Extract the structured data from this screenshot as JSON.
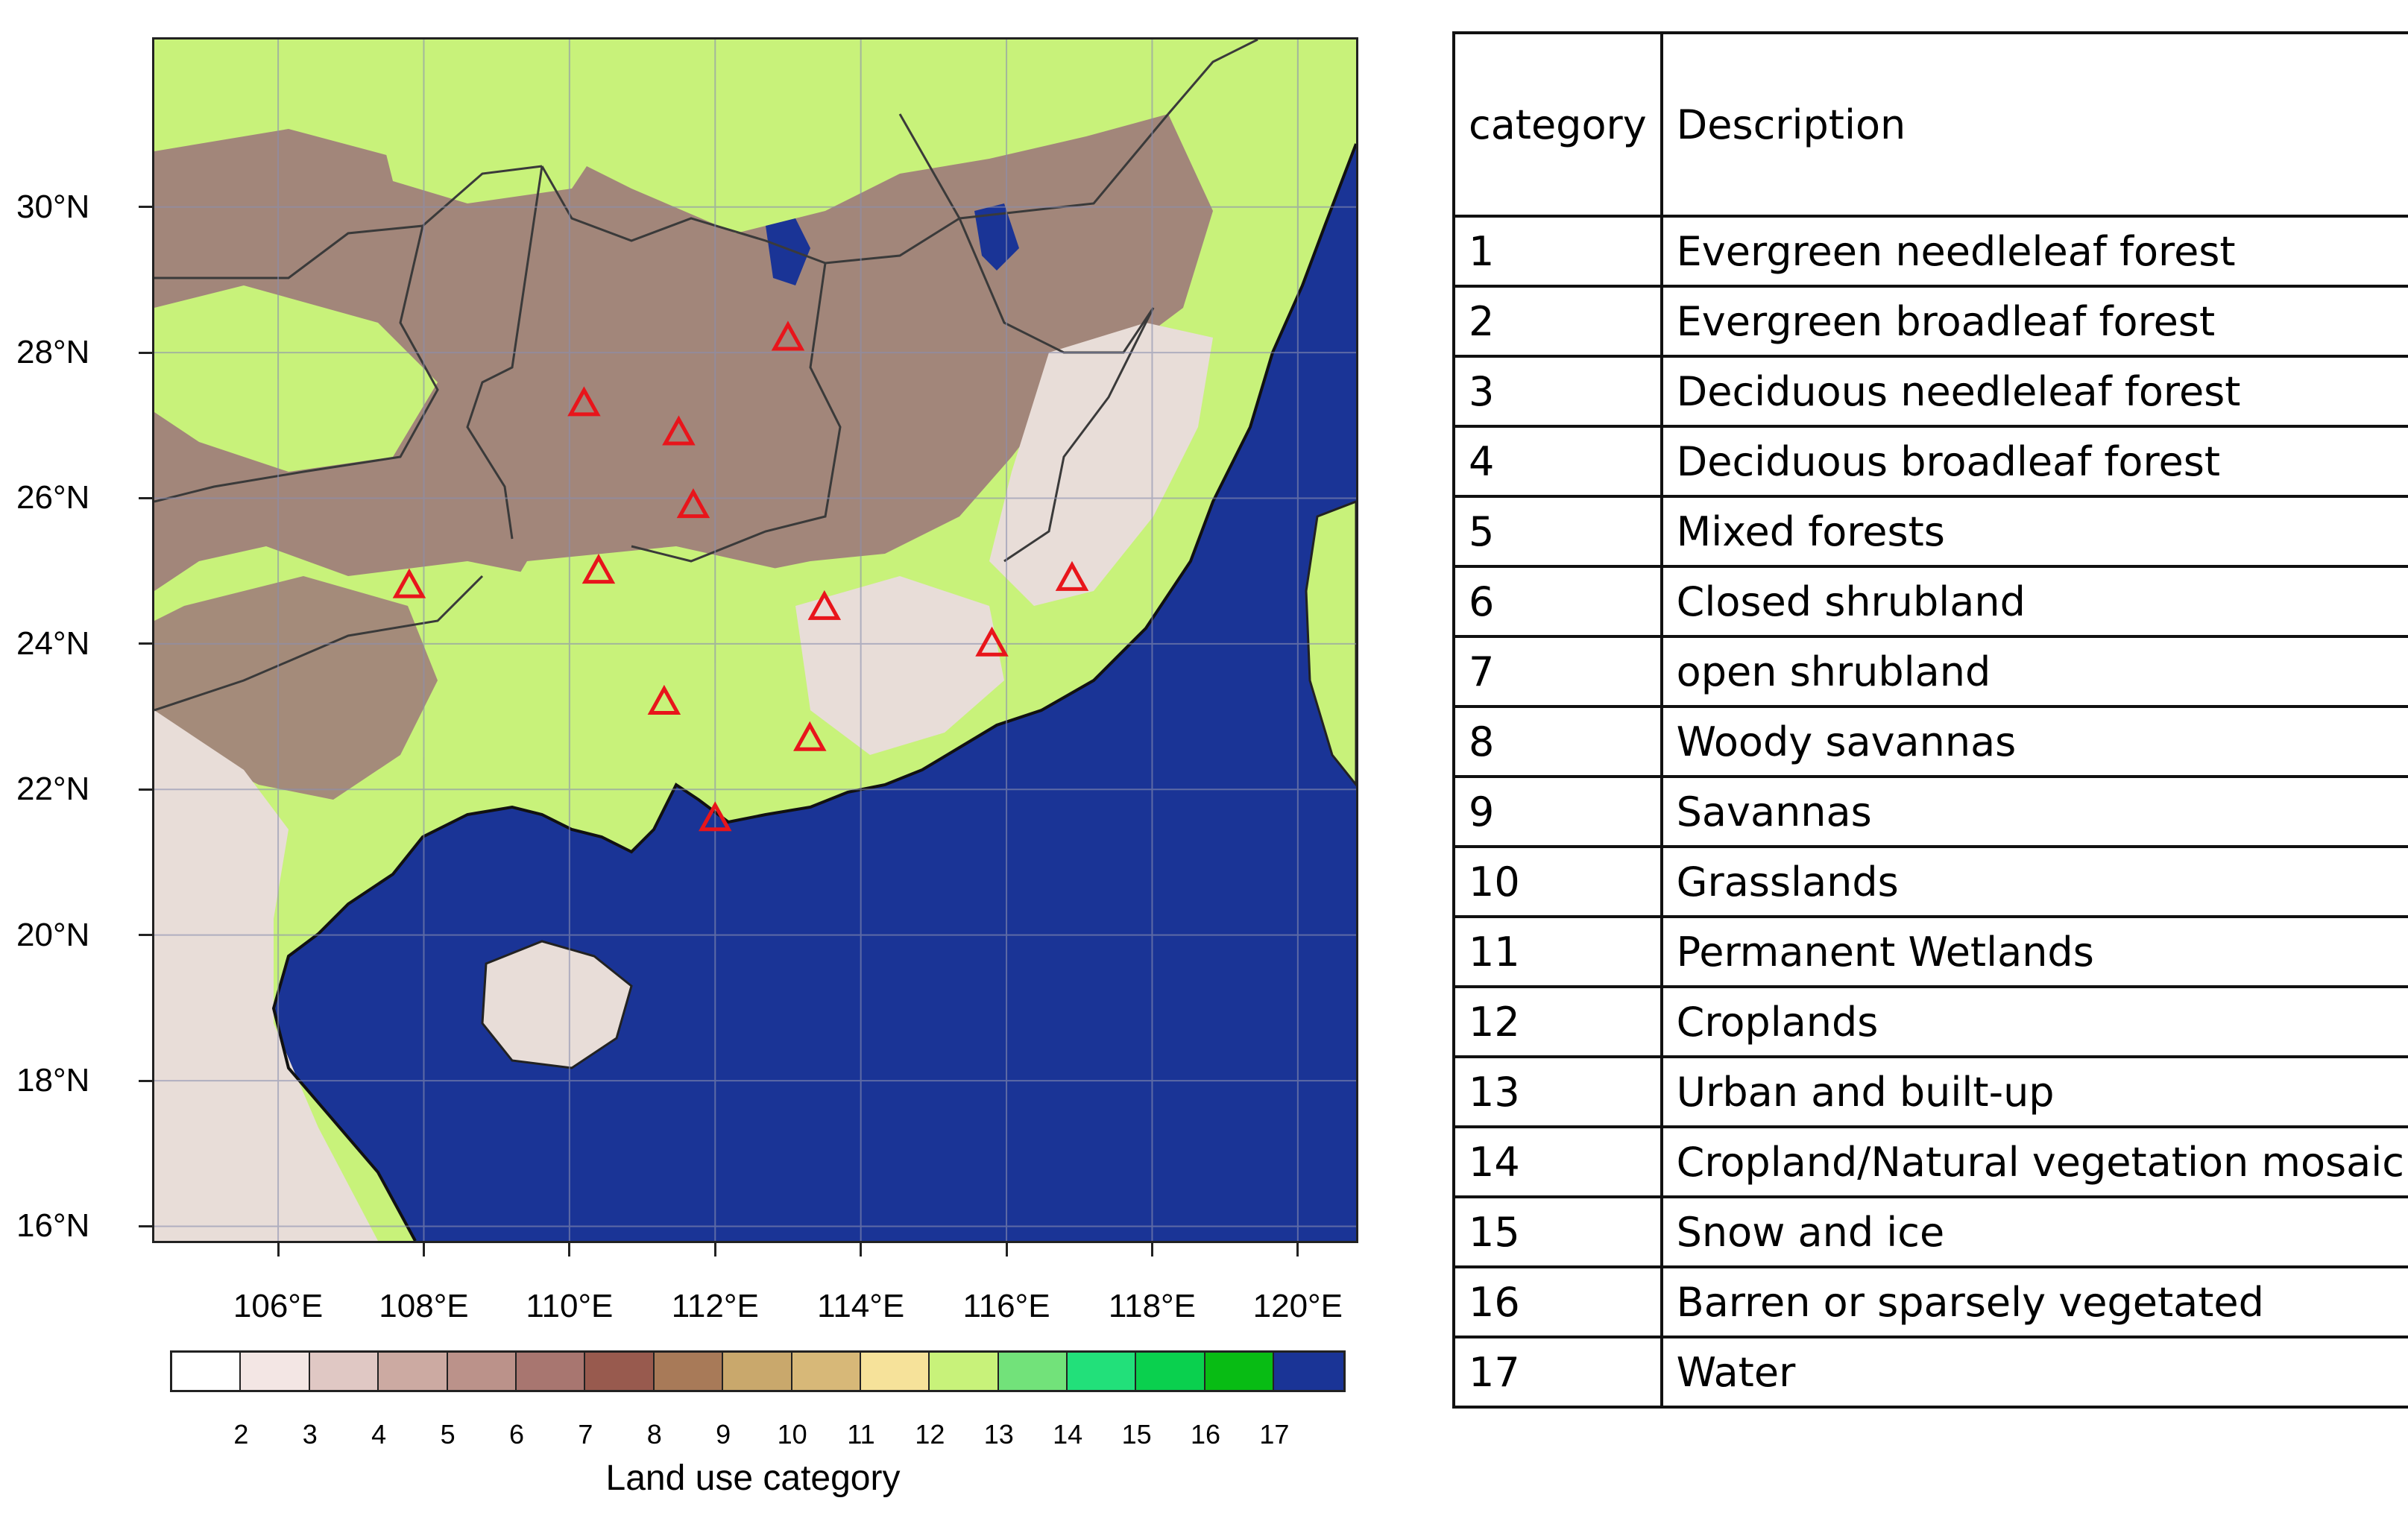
{
  "map": {
    "lat_labels": [
      "30°N",
      "28°N",
      "26°N",
      "24°N",
      "22°N",
      "20°N",
      "18°N",
      "16°N"
    ],
    "lon_labels": [
      "106°E",
      "108°E",
      "110°E",
      "112°E",
      "114°E",
      "116°E",
      "118°E",
      "120°E"
    ],
    "colors": {
      "water": "#1a3496",
      "croplands": "#c8f27a",
      "mosaic": "#72e27a",
      "urban": "#d4bfb5",
      "forest": "#a0807a",
      "shrub": "#e8ddd8",
      "marker": "#e8151b"
    },
    "markers": [
      {
        "lon": 107.8,
        "lat": 24.8
      },
      {
        "lon": 110.2,
        "lat": 27.3
      },
      {
        "lon": 110.4,
        "lat": 25.0
      },
      {
        "lon": 111.5,
        "lat": 26.9
      },
      {
        "lon": 111.7,
        "lat": 25.9
      },
      {
        "lon": 113.0,
        "lat": 28.2
      },
      {
        "lon": 113.5,
        "lat": 24.5
      },
      {
        "lon": 111.3,
        "lat": 23.2
      },
      {
        "lon": 113.3,
        "lat": 22.7
      },
      {
        "lon": 112.0,
        "lat": 21.6
      },
      {
        "lon": 115.8,
        "lat": 24.0
      },
      {
        "lon": 116.9,
        "lat": 24.9
      }
    ]
  },
  "colorbar": {
    "title": "Land use category",
    "labels": [
      "2",
      "3",
      "4",
      "5",
      "6",
      "7",
      "8",
      "9",
      "10",
      "11",
      "12",
      "13",
      "14",
      "15",
      "16",
      "17"
    ],
    "colors": [
      "#ffffff",
      "#f3e6e4",
      "#e0c8c4",
      "#ccaaa2",
      "#bb928a",
      "#a87670",
      "#985a4e",
      "#a87a58",
      "#c9a86c",
      "#d7b878",
      "#f6e29a",
      "#c8f27a",
      "#72e27a",
      "#22e07a",
      "#0ad04e",
      "#08bc14",
      "#1a3496"
    ]
  },
  "table": {
    "header_category": "category",
    "header_description": "Description",
    "rows": [
      {
        "category": "1",
        "description": "Evergreen needleleaf forest"
      },
      {
        "category": "2",
        "description": "Evergreen broadleaf forest"
      },
      {
        "category": "3",
        "description": "Deciduous needleleaf forest"
      },
      {
        "category": "4",
        "description": "Deciduous broadleaf forest"
      },
      {
        "category": "5",
        "description": "Mixed forests"
      },
      {
        "category": "6",
        "description": "Closed shrubland"
      },
      {
        "category": "7",
        "description": "open shrubland"
      },
      {
        "category": "8",
        "description": "Woody savannas"
      },
      {
        "category": "9",
        "description": "Savannas"
      },
      {
        "category": "10",
        "description": "Grasslands"
      },
      {
        "category": "11",
        "description": "Permanent Wetlands"
      },
      {
        "category": "12",
        "description": "Croplands"
      },
      {
        "category": "13",
        "description": "Urban and built-up"
      },
      {
        "category": "14",
        "description": "Cropland/Natural vegetation mosaic"
      },
      {
        "category": "15",
        "description": "Snow and ice"
      },
      {
        "category": "16",
        "description": "Barren or sparsely vegetated"
      },
      {
        "category": "17",
        "description": "Water"
      }
    ]
  }
}
